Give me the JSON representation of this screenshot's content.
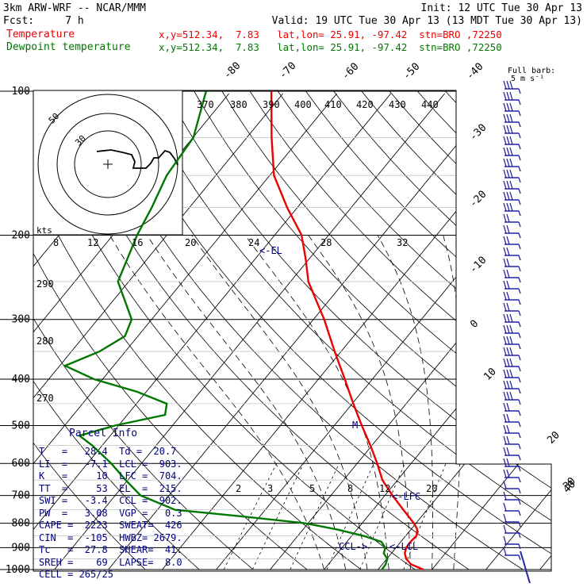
{
  "header": {
    "model": "3km ARW-WRF -- NCAR/MMM",
    "init": "Init: 12 UTC Tue 30 Apr 13",
    "fcst": "Fcst:     7 h",
    "valid": "Valid: 19 UTC Tue 30 Apr 13 (13 MDT Tue 30 Apr 13)",
    "temp_label": "Temperature",
    "temp_loc": "x,y=512.34,  7.83   lat,lon= 25.91, -97.42  stn=BRO ,72250",
    "dew_label": "Dewpoint temperature",
    "dew_loc": "x,y=512.34,  7.83   lat,lon= 25.91, -97.42  stn=BRO ,72250",
    "temp_color": "#ee0000",
    "dew_color": "#007700"
  },
  "parcel": {
    "title": "Parcel Info",
    "rows": [
      "T   =   28.4  Td =  20.7",
      "LI  =   -7.1  LCL =  903.",
      "K   =     10  LFC =  704.",
      "TT  =     53  EL  =  215.",
      "SWI =   -3.4  CCL =  902.",
      "PW  =   3.08  VGP =   0.3",
      "CAPE =  2223  SWEAT=  426",
      "CIN  =  -105  HWBZ= 2679.",
      "Tc   =  27.8  SHEAR=  41.",
      "SREH =    69  LAPSE=  8.0",
      "CELL = 265/25"
    ]
  },
  "hodograph": {
    "unit_label": "kts",
    "ring_labels": [
      "50",
      "30"
    ]
  },
  "barb_legend": {
    "line1": "Full barb:",
    "line2": "5 m s⁻¹"
  },
  "annotations": {
    "el": "<-EL",
    "lfc": "<-LFC",
    "lcl": "<-LCL",
    "ccl": "CCL->",
    "m": "M"
  },
  "chart_data": {
    "type": "line",
    "title": "",
    "yscale": "log",
    "ylabel": "",
    "xlabel": "",
    "pressure_ticks": [
      100,
      200,
      300,
      400,
      500,
      600,
      700,
      800,
      900,
      1000
    ],
    "isotherm_labels": [
      "-80",
      "-70",
      "-60",
      "-50",
      "-40",
      "-30",
      "-20",
      "-10",
      "0",
      "10",
      "20",
      "30",
      "40"
    ],
    "theta_labels": [
      "370",
      "380",
      "390",
      "400",
      "410",
      "420",
      "430",
      "440",
      "290",
      "280",
      "270"
    ],
    "hodo_speed_labels": [
      "8",
      "12",
      "16",
      "20",
      "24",
      "28",
      "32"
    ],
    "mixing_ratio_labels": [
      "2",
      "3",
      "5",
      "8",
      "12",
      "20"
    ],
    "series": [
      {
        "name": "Temperature",
        "color": "#ee0000",
        "points": [
          {
            "p": 1000,
            "t": 28.4
          },
          {
            "p": 975,
            "t": 25.3
          },
          {
            "p": 950,
            "t": 23.6
          },
          {
            "p": 925,
            "t": 22.5
          },
          {
            "p": 900,
            "t": 21.9
          },
          {
            "p": 875,
            "t": 21.8
          },
          {
            "p": 850,
            "t": 22.0
          },
          {
            "p": 825,
            "t": 21.2
          },
          {
            "p": 800,
            "t": 19.6
          },
          {
            "p": 750,
            "t": 15.6
          },
          {
            "p": 700,
            "t": 11.4
          },
          {
            "p": 650,
            "t": 7.2
          },
          {
            "p": 600,
            "t": 3.7
          },
          {
            "p": 550,
            "t": -0.3
          },
          {
            "p": 500,
            "t": -4.9
          },
          {
            "p": 450,
            "t": -9.8
          },
          {
            "p": 400,
            "t": -15.1
          },
          {
            "p": 350,
            "t": -21.2
          },
          {
            "p": 300,
            "t": -28.0
          },
          {
            "p": 250,
            "t": -36.7
          },
          {
            "p": 225,
            "t": -40.5
          },
          {
            "p": 200,
            "t": -45.0
          },
          {
            "p": 175,
            "t": -51.9
          },
          {
            "p": 150,
            "t": -59.2
          },
          {
            "p": 125,
            "t": -65.4
          },
          {
            "p": 100,
            "t": -72.5
          }
        ]
      },
      {
        "name": "Dewpoint temperature",
        "color": "#007700",
        "points": [
          {
            "p": 1000,
            "t": 20.7
          },
          {
            "p": 975,
            "t": 20.6
          },
          {
            "p": 950,
            "t": 20.1
          },
          {
            "p": 925,
            "t": 18.6
          },
          {
            "p": 900,
            "t": 18.0
          },
          {
            "p": 875,
            "t": 16.4
          },
          {
            "p": 850,
            "t": 12.1
          },
          {
            "p": 825,
            "t": 6.4
          },
          {
            "p": 800,
            "t": -0.6
          },
          {
            "p": 775,
            "t": -13.0
          },
          {
            "p": 750,
            "t": -26.7
          },
          {
            "p": 700,
            "t": -35.3
          },
          {
            "p": 650,
            "t": -40.4
          },
          {
            "p": 600,
            "t": -45.6
          },
          {
            "p": 550,
            "t": -51.9
          },
          {
            "p": 525,
            "t": -55.7
          },
          {
            "p": 500,
            "t": -50.7
          },
          {
            "p": 475,
            "t": -43.0
          },
          {
            "p": 450,
            "t": -44.4
          },
          {
            "p": 425,
            "t": -51.7
          },
          {
            "p": 400,
            "t": -61.6
          },
          {
            "p": 375,
            "t": -69.0
          },
          {
            "p": 350,
            "t": -64.8
          },
          {
            "p": 325,
            "t": -62.4
          },
          {
            "p": 300,
            "t": -63.7
          },
          {
            "p": 250,
            "t": -72.0
          },
          {
            "p": 200,
            "t": -75.5
          },
          {
            "p": 175,
            "t": -77.0
          },
          {
            "p": 150,
            "t": -79.1
          },
          {
            "p": 125,
            "t": -79.9
          },
          {
            "p": 100,
            "t": -84.6
          }
        ]
      }
    ]
  }
}
